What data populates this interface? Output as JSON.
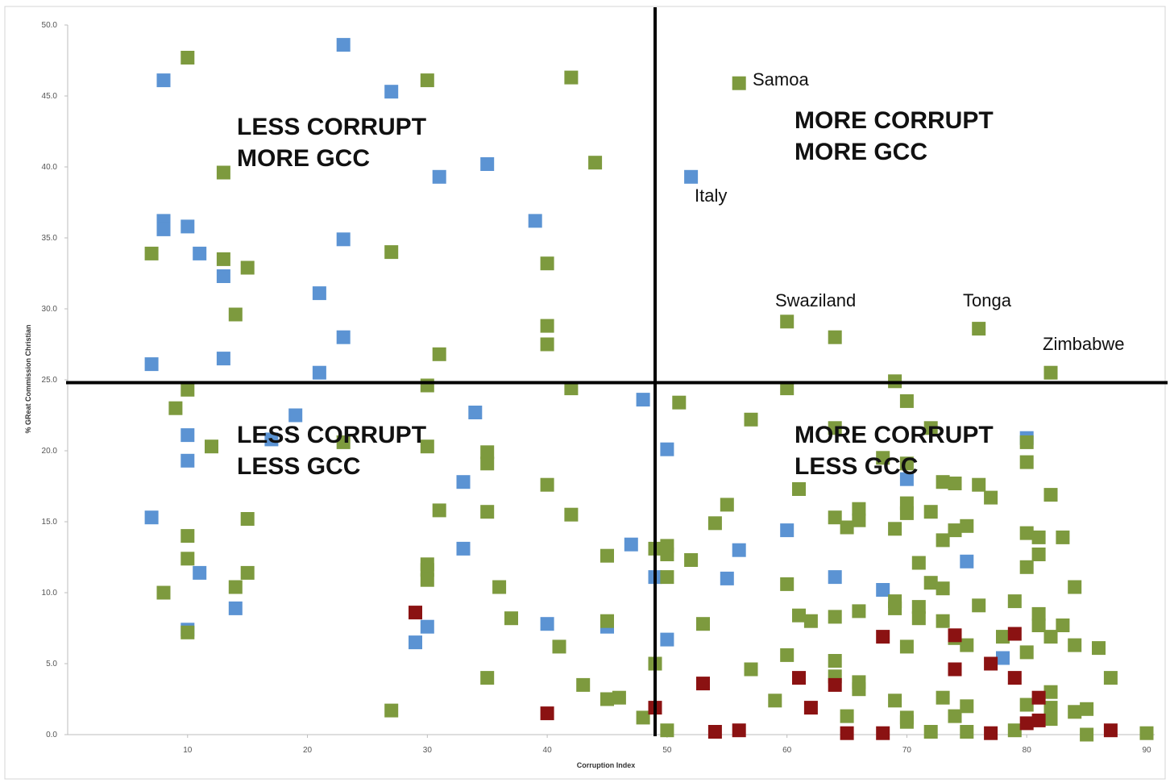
{
  "chart_data": {
    "type": "scatter",
    "title": "",
    "xlabel": "Corruption Index",
    "ylabel": "% GReat Commission Christian",
    "xlim": [
      0,
      90
    ],
    "ylim": [
      0,
      50
    ],
    "x_ticks": [
      "10",
      "20",
      "30",
      "40",
      "50",
      "60",
      "70",
      "80",
      "90"
    ],
    "y_ticks": [
      "0.0",
      "5.0",
      "10.0",
      "15.0",
      "20.0",
      "25.0",
      "30.0",
      "35.0",
      "40.0",
      "45.0",
      "50.0"
    ],
    "grid": false,
    "legend": "none",
    "divider_lines": {
      "x": 49,
      "y": 24.8
    },
    "quadrant_labels": [
      {
        "id": "less-corrupt-more-gcc",
        "line1": "LESS CORRUPT",
        "line2": "MORE GCC"
      },
      {
        "id": "more-corrupt-more-gcc",
        "line1": "MORE CORRUPT",
        "line2": "MORE GCC"
      },
      {
        "id": "less-corrupt-less-gcc",
        "line1": "LESS CORRUPT",
        "line2": "LESS GCC"
      },
      {
        "id": "more-corrupt-less-gcc",
        "line1": "MORE CORRUPT",
        "line2": "LESS GCC"
      }
    ],
    "annotations": [
      {
        "text": "Samoa",
        "x": 56,
        "y": 45.9
      },
      {
        "text": "Italy",
        "x": 52,
        "y": 39.3
      },
      {
        "text": "Swaziland",
        "x": 60,
        "y": 29.1
      },
      {
        "text": "Tonga",
        "x": 76,
        "y": 28.6
      },
      {
        "text": "Zimbabwe",
        "x": 82,
        "y": 25.5
      }
    ],
    "colors": {
      "blue": "#5b93d3",
      "green": "#7d9a3e",
      "red": "#8b1212"
    },
    "series": [
      {
        "color": "blue",
        "points": [
          [
            8,
            46.1
          ],
          [
            23,
            48.6
          ],
          [
            27,
            45.3
          ],
          [
            31,
            39.3
          ],
          [
            35,
            40.2
          ],
          [
            39,
            36.2
          ],
          [
            8,
            36.2
          ],
          [
            8,
            35.6
          ],
          [
            10,
            35.8
          ],
          [
            11,
            33.9
          ],
          [
            13,
            32.3
          ],
          [
            23,
            34.9
          ],
          [
            21,
            31.1
          ],
          [
            23,
            28.0
          ],
          [
            13,
            26.5
          ],
          [
            7,
            26.1
          ],
          [
            21,
            25.5
          ],
          [
            52,
            39.3
          ],
          [
            19,
            22.5
          ],
          [
            10,
            21.1
          ],
          [
            10,
            19.3
          ],
          [
            17,
            20.8
          ],
          [
            34,
            22.7
          ],
          [
            48,
            23.6
          ],
          [
            50,
            20.1
          ],
          [
            33,
            17.8
          ],
          [
            7,
            15.3
          ],
          [
            11,
            11.4
          ],
          [
            14,
            8.9
          ],
          [
            10,
            7.4
          ],
          [
            29,
            6.5
          ],
          [
            30,
            7.6
          ],
          [
            33,
            13.1
          ],
          [
            40,
            7.8
          ],
          [
            45,
            7.6
          ],
          [
            47,
            13.4
          ],
          [
            49,
            11.1
          ],
          [
            50,
            6.7
          ],
          [
            55,
            11.0
          ],
          [
            56,
            13.0
          ],
          [
            60,
            14.4
          ],
          [
            64,
            11.1
          ],
          [
            68,
            10.2
          ],
          [
            70,
            18.0
          ],
          [
            75,
            12.2
          ],
          [
            78,
            5.4
          ],
          [
            80,
            20.9
          ]
        ]
      },
      {
        "color": "green",
        "points": [
          [
            10,
            47.7
          ],
          [
            30,
            46.1
          ],
          [
            42,
            46.3
          ],
          [
            56,
            45.9
          ],
          [
            13,
            39.6
          ],
          [
            44,
            40.3
          ],
          [
            7,
            33.9
          ],
          [
            13,
            33.5
          ],
          [
            15,
            32.9
          ],
          [
            27,
            34.0
          ],
          [
            40,
            33.2
          ],
          [
            14,
            29.6
          ],
          [
            40,
            28.8
          ],
          [
            40,
            27.5
          ],
          [
            31,
            26.8
          ],
          [
            60,
            29.1
          ],
          [
            64,
            28.0
          ],
          [
            76,
            28.6
          ],
          [
            82,
            25.5
          ],
          [
            69,
            24.9
          ],
          [
            60,
            24.4
          ],
          [
            70,
            23.5
          ],
          [
            10,
            24.3
          ],
          [
            9,
            23.0
          ],
          [
            30,
            24.6
          ],
          [
            42,
            24.4
          ],
          [
            12,
            20.3
          ],
          [
            23,
            20.6
          ],
          [
            30,
            20.3
          ],
          [
            35,
            19.9
          ],
          [
            35,
            19.1
          ],
          [
            51,
            23.4
          ],
          [
            57,
            22.2
          ],
          [
            64,
            21.6
          ],
          [
            72,
            21.6
          ],
          [
            68,
            19.5
          ],
          [
            70,
            19.1
          ],
          [
            40,
            17.6
          ],
          [
            61,
            17.3
          ],
          [
            73,
            17.8
          ],
          [
            74,
            17.7
          ],
          [
            76,
            17.6
          ],
          [
            77,
            16.7
          ],
          [
            80,
            20.6
          ],
          [
            80,
            19.2
          ],
          [
            82,
            16.9
          ],
          [
            15,
            15.2
          ],
          [
            31,
            15.8
          ],
          [
            35,
            15.7
          ],
          [
            42,
            15.5
          ],
          [
            54,
            14.9
          ],
          [
            55,
            16.2
          ],
          [
            64,
            15.3
          ],
          [
            65,
            14.6
          ],
          [
            66,
            15.9
          ],
          [
            66,
            15.1
          ],
          [
            69,
            14.5
          ],
          [
            70,
            16.3
          ],
          [
            70,
            15.6
          ],
          [
            72,
            15.7
          ],
          [
            74,
            14.4
          ],
          [
            75,
            14.7
          ],
          [
            73,
            13.7
          ],
          [
            80,
            14.2
          ],
          [
            81,
            13.9
          ],
          [
            83,
            13.9
          ],
          [
            10,
            14.0
          ],
          [
            10,
            12.4
          ],
          [
            15,
            11.4
          ],
          [
            14,
            10.4
          ],
          [
            8,
            10.0
          ],
          [
            10,
            7.2
          ],
          [
            30,
            12.0
          ],
          [
            30,
            11.6
          ],
          [
            30,
            10.9
          ],
          [
            36,
            10.4
          ],
          [
            37,
            8.2
          ],
          [
            41,
            6.2
          ],
          [
            45,
            8.0
          ],
          [
            45,
            12.6
          ],
          [
            49,
            13.1
          ],
          [
            50,
            13.3
          ],
          [
            50,
            12.7
          ],
          [
            50,
            11.1
          ],
          [
            52,
            12.3
          ],
          [
            53,
            7.8
          ],
          [
            60,
            10.6
          ],
          [
            61,
            8.4
          ],
          [
            62,
            8.0
          ],
          [
            64,
            8.3
          ],
          [
            66,
            8.7
          ],
          [
            69,
            9.4
          ],
          [
            69,
            8.9
          ],
          [
            70,
            6.2
          ],
          [
            71,
            12.1
          ],
          [
            71,
            9.0
          ],
          [
            71,
            8.2
          ],
          [
            72,
            10.7
          ],
          [
            73,
            10.3
          ],
          [
            73,
            8.0
          ],
          [
            74,
            6.8
          ],
          [
            75,
            6.3
          ],
          [
            76,
            9.1
          ],
          [
            78,
            6.9
          ],
          [
            79,
            9.4
          ],
          [
            80,
            11.8
          ],
          [
            80,
            5.8
          ],
          [
            81,
            12.7
          ],
          [
            81,
            8.5
          ],
          [
            81,
            7.7
          ],
          [
            82,
            6.9
          ],
          [
            83,
            7.7
          ],
          [
            84,
            10.4
          ],
          [
            84,
            6.3
          ],
          [
            86,
            6.1
          ],
          [
            87,
            4.0
          ],
          [
            43,
            3.5
          ],
          [
            45,
            2.5
          ],
          [
            46,
            2.6
          ],
          [
            48,
            1.2
          ],
          [
            49,
            5.0
          ],
          [
            50,
            0.3
          ],
          [
            57,
            4.6
          ],
          [
            59,
            2.4
          ],
          [
            60,
            5.6
          ],
          [
            64,
            5.2
          ],
          [
            64,
            4.1
          ],
          [
            66,
            3.7
          ],
          [
            66,
            3.2
          ],
          [
            65,
            1.3
          ],
          [
            69,
            2.4
          ],
          [
            70,
            1.2
          ],
          [
            70,
            0.9
          ],
          [
            72,
            0.2
          ],
          [
            73,
            2.6
          ],
          [
            74,
            1.3
          ],
          [
            75,
            2.0
          ],
          [
            75,
            0.2
          ],
          [
            79,
            0.3
          ],
          [
            80,
            2.1
          ],
          [
            82,
            3.0
          ],
          [
            82,
            1.9
          ],
          [
            82,
            1.1
          ],
          [
            84,
            1.6
          ],
          [
            85,
            1.8
          ],
          [
            85,
            0.0
          ],
          [
            90,
            0.1
          ],
          [
            27,
            1.7
          ],
          [
            35,
            4.0
          ]
        ]
      },
      {
        "color": "red",
        "points": [
          [
            29,
            8.6
          ],
          [
            40,
            1.5
          ],
          [
            49,
            1.9
          ],
          [
            53,
            3.6
          ],
          [
            54,
            0.2
          ],
          [
            56,
            0.3
          ],
          [
            61,
            4.0
          ],
          [
            62,
            1.9
          ],
          [
            64,
            3.5
          ],
          [
            65,
            0.1
          ],
          [
            68,
            6.9
          ],
          [
            68,
            0.1
          ],
          [
            74,
            4.6
          ],
          [
            74,
            7.0
          ],
          [
            77,
            5.0
          ],
          [
            77,
            0.1
          ],
          [
            79,
            7.1
          ],
          [
            79,
            4.0
          ],
          [
            80,
            0.8
          ],
          [
            81,
            2.6
          ],
          [
            81,
            1.0
          ],
          [
            87,
            0.3
          ]
        ]
      }
    ]
  }
}
